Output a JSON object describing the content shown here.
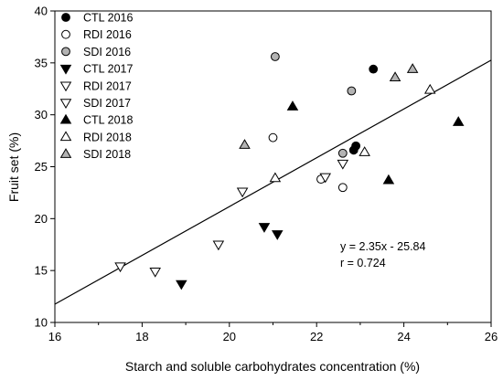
{
  "chart_data": {
    "type": "scatter",
    "title": "",
    "xlabel": "Starch and soluble carbohydrates concentration (%)",
    "ylabel": "Fruit set (%)",
    "xlim": [
      16,
      26
    ],
    "ylim": [
      10,
      40
    ],
    "x_ticks": [
      "16",
      "18",
      "20",
      "22",
      "24",
      "26"
    ],
    "y_ticks": [
      "10",
      "15",
      "20",
      "25",
      "30",
      "35",
      "40"
    ],
    "grid": false,
    "legend_position": "top-left",
    "regression": {
      "slope": 2.35,
      "intercept": -25.84,
      "equation_label": "y = 2.35x - 25.84",
      "r_label": "r = 0.724"
    },
    "series": [
      {
        "name": "CTL 2016",
        "marker": "circle",
        "fill": "#000000",
        "points": [
          [
            23.3,
            34.4
          ],
          [
            22.9,
            27.0
          ],
          [
            22.85,
            26.6
          ]
        ]
      },
      {
        "name": "RDI 2016",
        "marker": "circle",
        "fill": "#ffffff",
        "points": [
          [
            21.0,
            27.8
          ],
          [
            22.1,
            23.8
          ],
          [
            22.6,
            23.0
          ]
        ]
      },
      {
        "name": "SDI 2016",
        "marker": "circle",
        "fill": "#b3b3b3",
        "points": [
          [
            21.05,
            35.6
          ],
          [
            22.8,
            32.3
          ],
          [
            22.6,
            26.3
          ]
        ]
      },
      {
        "name": "CTL 2017",
        "marker": "triangle-down",
        "fill": "#000000",
        "points": [
          [
            18.9,
            13.7
          ],
          [
            20.8,
            19.2
          ],
          [
            21.1,
            18.5
          ]
        ]
      },
      {
        "name": "RDI 2017",
        "marker": "triangle-down",
        "fill": "#ffffff",
        "points": [
          [
            17.5,
            15.4
          ],
          [
            18.3,
            14.9
          ],
          [
            22.2,
            24.0
          ]
        ]
      },
      {
        "name": "SDI 2017",
        "marker": "triangle-down",
        "fill": "#ffffff",
        "points": [
          [
            19.75,
            17.5
          ],
          [
            20.3,
            22.6
          ],
          [
            22.6,
            25.3
          ]
        ]
      },
      {
        "name": "CTL 2018",
        "marker": "triangle-up",
        "fill": "#000000",
        "points": [
          [
            21.45,
            30.8
          ],
          [
            23.65,
            23.7
          ],
          [
            25.25,
            29.3
          ]
        ]
      },
      {
        "name": "RDI 2018",
        "marker": "triangle-up",
        "fill": "#ffffff",
        "points": [
          [
            21.05,
            23.9
          ],
          [
            23.1,
            26.4
          ],
          [
            24.6,
            32.4
          ]
        ]
      },
      {
        "name": "SDI 2018",
        "marker": "triangle-up",
        "fill": "#b3b3b3",
        "points": [
          [
            20.35,
            27.1
          ],
          [
            23.8,
            33.6
          ],
          [
            24.2,
            34.4
          ]
        ]
      }
    ]
  }
}
